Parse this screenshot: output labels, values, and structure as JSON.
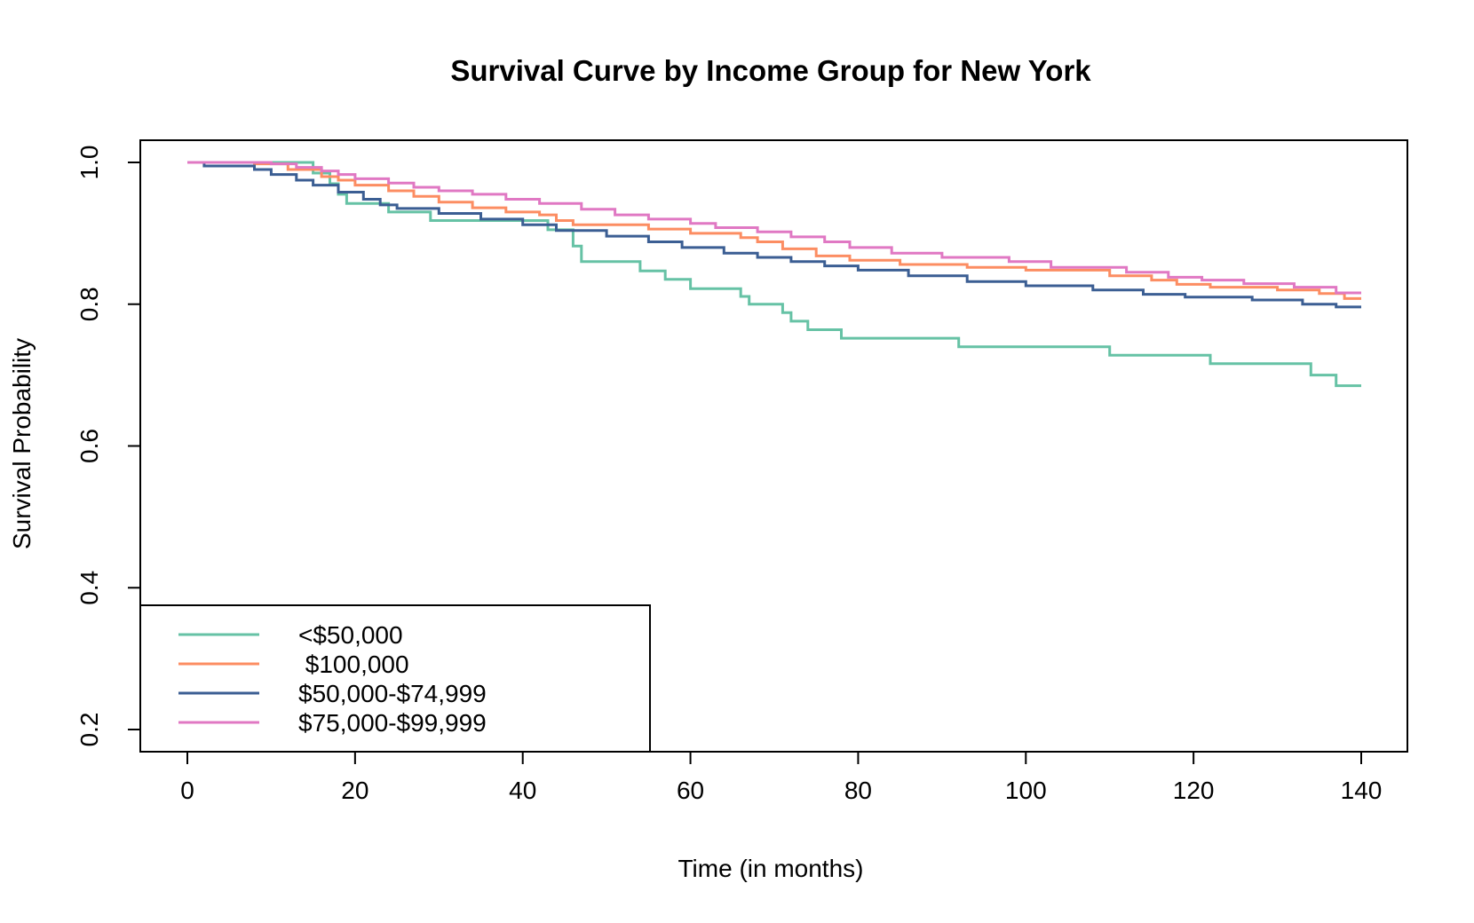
{
  "chart_data": {
    "type": "line",
    "step": true,
    "title": "Survival Curve by Income Group for New York",
    "xlabel": "Time (in months)",
    "ylabel": "Survival Probability",
    "xlim": [
      0,
      140
    ],
    "ylim": [
      0.2,
      1.0
    ],
    "xticks": [
      0,
      20,
      40,
      60,
      80,
      100,
      120,
      140
    ],
    "yticks": [
      0.2,
      0.4,
      0.6,
      0.8,
      1.0
    ],
    "ytick_labels": [
      "0.2",
      "0.4",
      "0.6",
      "0.8",
      "1.0"
    ],
    "grid": false,
    "legend_position": "bottom-left",
    "series": [
      {
        "name": "<$50,000",
        "color": "#66c2a5",
        "x": [
          0,
          13,
          15,
          17,
          18,
          19,
          24,
          29,
          43,
          46,
          47,
          54,
          57,
          60,
          66,
          67,
          71,
          72,
          74,
          78,
          92,
          110,
          122,
          134,
          137,
          140
        ],
        "y": [
          1.0,
          1.0,
          0.985,
          0.97,
          0.955,
          0.942,
          0.93,
          0.918,
          0.905,
          0.882,
          0.86,
          0.847,
          0.835,
          0.822,
          0.811,
          0.8,
          0.788,
          0.776,
          0.764,
          0.752,
          0.74,
          0.728,
          0.716,
          0.7,
          0.685,
          0.685
        ]
      },
      {
        "name": " $100,000",
        "color": "#fc8d62",
        "x": [
          0,
          8,
          12,
          16,
          18,
          20,
          24,
          27,
          30,
          34,
          38,
          42,
          44,
          46,
          55,
          60,
          66,
          68,
          71,
          75,
          79,
          85,
          93,
          100,
          110,
          115,
          118,
          122,
          130,
          135,
          138,
          140
        ],
        "y": [
          1.0,
          0.998,
          0.99,
          0.98,
          0.975,
          0.968,
          0.96,
          0.952,
          0.944,
          0.936,
          0.93,
          0.926,
          0.918,
          0.912,
          0.906,
          0.9,
          0.894,
          0.888,
          0.878,
          0.868,
          0.862,
          0.856,
          0.852,
          0.848,
          0.84,
          0.834,
          0.828,
          0.824,
          0.82,
          0.815,
          0.808,
          0.808
        ]
      },
      {
        "name": "$50,000-$74,999",
        "color": "#3b5e93",
        "x": [
          0,
          2,
          8,
          10,
          13,
          15,
          18,
          21,
          23,
          25,
          30,
          35,
          40,
          44,
          50,
          55,
          59,
          64,
          68,
          72,
          76,
          80,
          86,
          93,
          100,
          108,
          114,
          119,
          127,
          133,
          137,
          140
        ],
        "y": [
          1.0,
          0.995,
          0.99,
          0.983,
          0.975,
          0.968,
          0.958,
          0.948,
          0.94,
          0.935,
          0.928,
          0.92,
          0.912,
          0.904,
          0.896,
          0.888,
          0.88,
          0.872,
          0.866,
          0.86,
          0.854,
          0.848,
          0.84,
          0.832,
          0.826,
          0.82,
          0.814,
          0.81,
          0.806,
          0.8,
          0.796,
          0.796
        ]
      },
      {
        "name": "$75,000-$99,999",
        "color": "#e078c3",
        "x": [
          0,
          10,
          13,
          16,
          18,
          20,
          24,
          27,
          30,
          34,
          38,
          42,
          47,
          51,
          55,
          60,
          63,
          68,
          72,
          76,
          79,
          84,
          90,
          98,
          103,
          112,
          117,
          121,
          126,
          132,
          137,
          140
        ],
        "y": [
          1.0,
          0.998,
          0.993,
          0.988,
          0.983,
          0.977,
          0.971,
          0.965,
          0.96,
          0.955,
          0.948,
          0.942,
          0.934,
          0.926,
          0.92,
          0.914,
          0.908,
          0.902,
          0.895,
          0.888,
          0.88,
          0.872,
          0.866,
          0.86,
          0.852,
          0.845,
          0.838,
          0.834,
          0.829,
          0.824,
          0.816,
          0.816
        ]
      }
    ]
  }
}
